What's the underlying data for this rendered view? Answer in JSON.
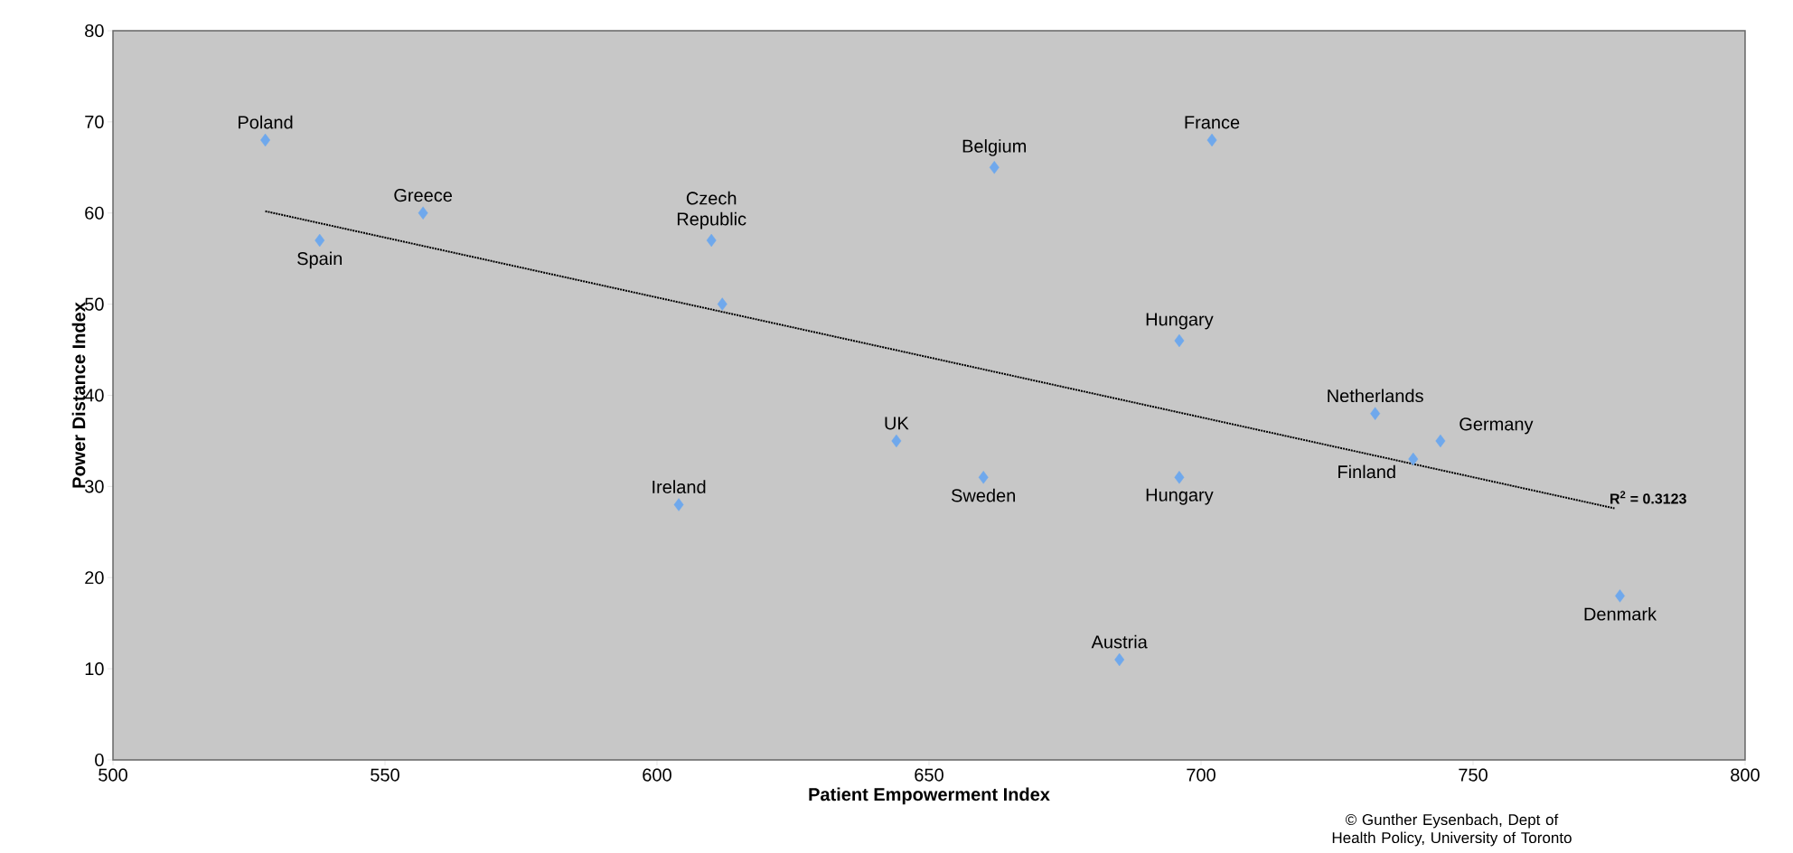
{
  "chart_data": {
    "type": "scatter",
    "xlabel": "Patient Empowerment Index",
    "ylabel": "Power Distance Index",
    "series": [
      {
        "color": "#6fa8ec",
        "marker": "diamond",
        "x": [
          528,
          557,
          538,
          610,
          612,
          662,
          702,
          696,
          732,
          744,
          739,
          644,
          604,
          660,
          696,
          685,
          777
        ],
        "values": [
          68,
          60,
          57,
          57,
          50,
          65,
          68,
          46,
          38,
          35,
          33,
          35,
          28,
          31,
          31,
          11,
          18
        ]
      },
      {
        "type": "line",
        "color": "#000000",
        "marker": "none",
        "line_style": "dotted",
        "x": [
          528,
          776
        ],
        "values": [
          60.2,
          27.6
        ]
      }
    ],
    "xlim": [
      500,
      800
    ],
    "ylim": [
      0,
      80
    ],
    "xticks": [
      500,
      550,
      600,
      650,
      700,
      750,
      800
    ],
    "yticks": [
      0,
      10,
      20,
      30,
      40,
      50,
      60,
      70,
      80
    ],
    "annotations": [
      {
        "text": "Poland",
        "x": 528,
        "y": 68
      },
      {
        "text": "Greece",
        "x": 557,
        "y": 60
      },
      {
        "text": "Spain",
        "x": 538,
        "y": 57
      },
      {
        "text": "Czech Republic",
        "x": 610,
        "y": 57
      },
      {
        "text": "Belgium",
        "x": 662,
        "y": 65
      },
      {
        "text": "France",
        "x": 702,
        "y": 68
      },
      {
        "text": "Hungary",
        "x": 696,
        "y": 46
      },
      {
        "text": "Netherlands",
        "x": 732,
        "y": 38
      },
      {
        "text": "Germany",
        "x": 744,
        "y": 35
      },
      {
        "text": "Finland",
        "x": 739,
        "y": 33
      },
      {
        "text": "UK",
        "x": 644,
        "y": 35
      },
      {
        "text": "Ireland",
        "x": 604,
        "y": 28
      },
      {
        "text": "Sweden",
        "x": 660,
        "y": 31
      },
      {
        "text": "Hungary",
        "x": 696,
        "y": 31
      },
      {
        "text": "Austria",
        "x": 685,
        "y": 11
      },
      {
        "text": "Denmark",
        "x": 777,
        "y": 18
      },
      "R$^{2}$ = 0.3123",
      "© Gunther Eysenbach, Dept of Health Policy, University of Toronto"
    ]
  }
}
